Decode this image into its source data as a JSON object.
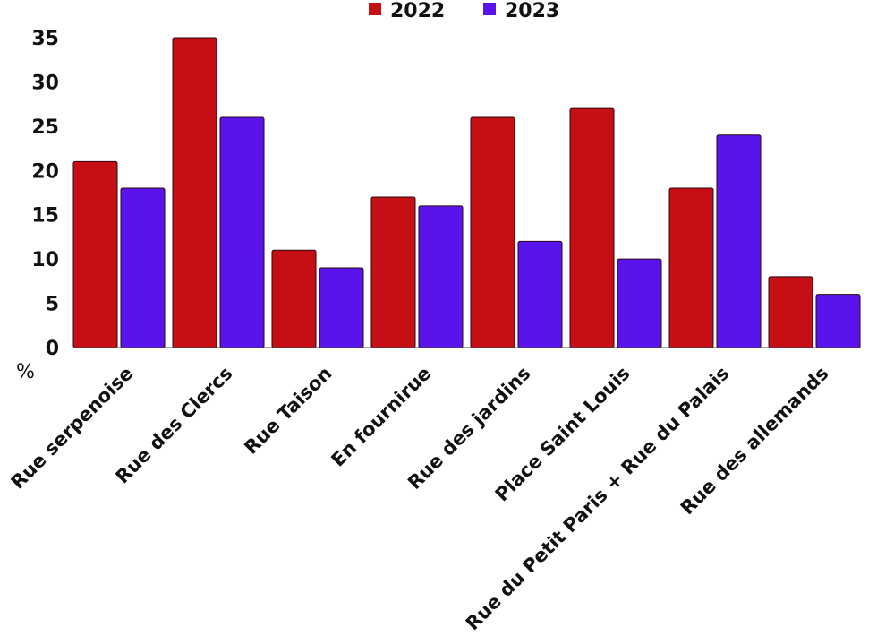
{
  "chart_data": {
    "type": "bar",
    "title": "",
    "xlabel": "",
    "ylabel": "%",
    "ylim": [
      0,
      35
    ],
    "yticks": [
      0,
      5,
      10,
      15,
      20,
      25,
      30,
      35
    ],
    "grid": false,
    "legend_position": "top-center",
    "categories": [
      "Rue serpenoise",
      "Rue des Clercs",
      "Rue Taison",
      "En fournirue",
      "Rue des jardins",
      "Place Saint Louis",
      "Rue du Petit Paris + Rue du Palais",
      "Rue des allemands"
    ],
    "series": [
      {
        "name": "2022",
        "color": "#C50F14",
        "values": [
          21,
          35,
          11,
          17,
          26,
          27,
          18,
          8
        ]
      },
      {
        "name": "2023",
        "color": "#5B13EC",
        "values": [
          18,
          26,
          9,
          16,
          12,
          10,
          24,
          6
        ]
      }
    ]
  }
}
